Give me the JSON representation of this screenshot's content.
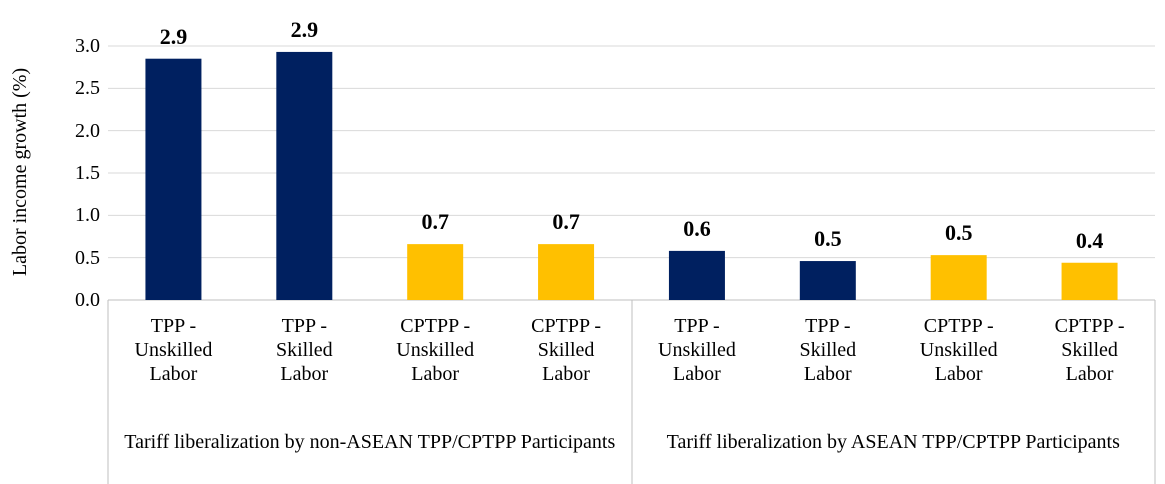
{
  "chart_data": {
    "type": "bar",
    "y_label": "Labor income growth (%)",
    "categories": [
      "TPP - Unskilled Labor",
      "TPP - Skilled Labor",
      "CPTPP - Unskilled Labor",
      "CPTPP - Skilled Labor",
      "TPP - Unskilled Labor",
      "TPP - Skilled Labor",
      "CPTPP - Unskilled Labor",
      "CPTPP - Skilled Labor"
    ],
    "groups": [
      "Tariff liberalization by non-ASEAN TPP/CPTPP Participants",
      "Tariff liberalization by ASEAN TPP/CPTPP Participants"
    ],
    "values": [
      2.85,
      2.93,
      0.66,
      0.66,
      0.58,
      0.46,
      0.53,
      0.44
    ],
    "value_labels": [
      "2.9",
      "2.9",
      "0.7",
      "0.7",
      "0.6",
      "0.5",
      "0.5",
      "0.4"
    ],
    "colors": [
      "#002060",
      "#002060",
      "#ffc000",
      "#ffc000",
      "#002060",
      "#002060",
      "#ffc000",
      "#ffc000"
    ],
    "ylim": [
      0,
      3
    ],
    "yticks": [
      {
        "value": 0,
        "label": "0.0"
      },
      {
        "value": 0.5,
        "label": "0.5"
      },
      {
        "value": 1,
        "label": "1.0"
      },
      {
        "value": 1.5,
        "label": "1.5"
      },
      {
        "value": 2,
        "label": "2.0"
      },
      {
        "value": 2.5,
        "label": "2.5"
      },
      {
        "value": 3,
        "label": "3.0"
      }
    ],
    "grid": true
  }
}
